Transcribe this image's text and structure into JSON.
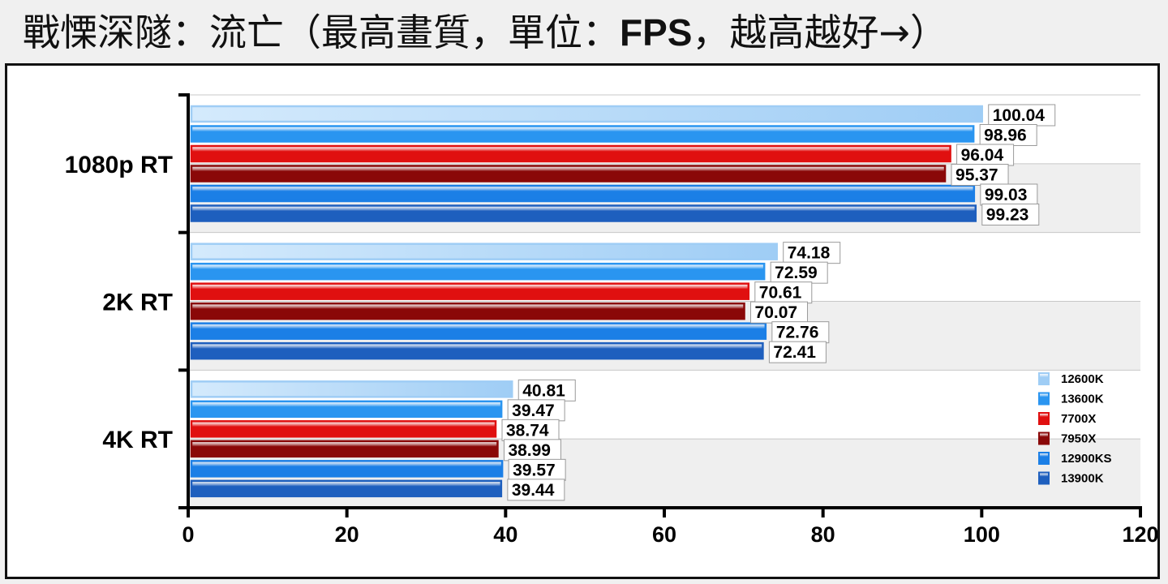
{
  "title": {
    "part1": "戰慄深隧：流亡（最高畫質，單位：",
    "unit": "FPS",
    "part2": "，越高越好→）"
  },
  "colors": {
    "12600K": "#9fcdf5",
    "13600K": "#2a95f0",
    "7700X": "#e01010",
    "7950X": "#8a0808",
    "12900KS": "#1b7fe6",
    "13900K": "#1e5fbe"
  },
  "chart_data": {
    "type": "bar",
    "orientation": "horizontal",
    "categories": [
      "1080p RT",
      "2K RT",
      "4K RT"
    ],
    "series": [
      {
        "name": "12600K",
        "values": [
          100.04,
          74.18,
          40.81
        ]
      },
      {
        "name": "13600K",
        "values": [
          98.96,
          72.59,
          39.47
        ]
      },
      {
        "name": "7700X",
        "values": [
          96.04,
          70.61,
          38.74
        ]
      },
      {
        "name": "7950X",
        "values": [
          95.37,
          70.07,
          38.99
        ]
      },
      {
        "name": "12900KS",
        "values": [
          99.03,
          72.76,
          39.57
        ]
      },
      {
        "name": "13900K",
        "values": [
          99.23,
          72.41,
          39.44
        ]
      }
    ],
    "xlim": [
      0,
      120
    ],
    "xticks": [
      0,
      20,
      40,
      60,
      80,
      100,
      120
    ],
    "grid": true,
    "legend_position": "bottom-right",
    "title": "戰慄深隧：流亡（最高畫質，單位：FPS，越高越好→）",
    "xlabel": "",
    "ylabel": ""
  }
}
